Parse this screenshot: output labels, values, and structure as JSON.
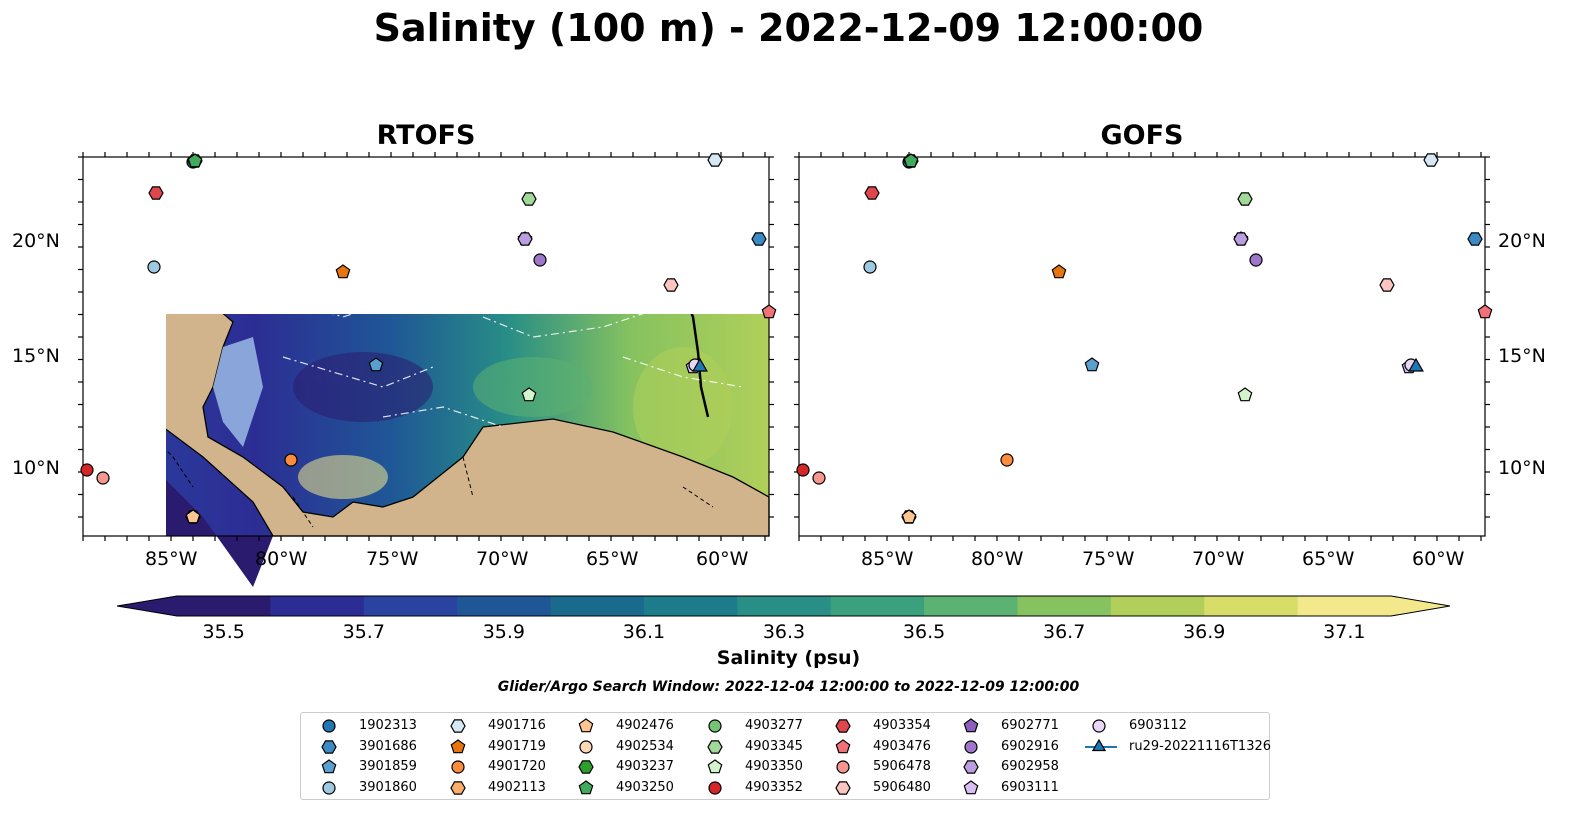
{
  "title": "Salinity (100 m) - 2022-12-09 12:00:00",
  "panels": [
    {
      "title": "RTOFS"
    },
    {
      "title": "GOFS"
    }
  ],
  "axes": {
    "lon_ticks": [
      "85°W",
      "80°W",
      "75°W",
      "70°W",
      "65°W",
      "60°W"
    ],
    "lat_ticks": [
      "20°N",
      "15°N",
      "10°N"
    ]
  },
  "colorbar": {
    "label": "Salinity (psu)",
    "ticks": [
      "35.5",
      "35.7",
      "35.9",
      "36.1",
      "36.3",
      "36.5",
      "36.7",
      "36.9",
      "37.1"
    ],
    "colors": [
      "#2b1b6f",
      "#2c2d94",
      "#2a43a0",
      "#1f5796",
      "#1a6a8e",
      "#1d7c8a",
      "#288e86",
      "#3aa07e",
      "#5cb272",
      "#86c25f",
      "#b1cf5a",
      "#d8dd6a",
      "#f4e88c"
    ],
    "range": [
      35.5,
      37.1
    ],
    "extend": "both"
  },
  "search_window": "Glider/Argo Search Window: 2022-12-04 12:00:00 to 2022-12-09 12:00:00",
  "legend": [
    {
      "label": "1902313",
      "marker": "circle",
      "color": "#1f77b4"
    },
    {
      "label": "3901686",
      "marker": "hexagon",
      "color": "#3a8ac4"
    },
    {
      "label": "3901859",
      "marker": "pentagon",
      "color": "#5aa0cf"
    },
    {
      "label": "3901860",
      "marker": "circle",
      "color": "#9ecae1"
    },
    {
      "label": "4901716",
      "marker": "hexagon",
      "color": "#d6e8f5"
    },
    {
      "label": "4901719",
      "marker": "pentagon",
      "color": "#e6750e"
    },
    {
      "label": "4901720",
      "marker": "circle",
      "color": "#fd8d3c"
    },
    {
      "label": "4902113",
      "marker": "hexagon",
      "color": "#fdae6b"
    },
    {
      "label": "4902476",
      "marker": "pentagon",
      "color": "#fdc690"
    },
    {
      "label": "4902534",
      "marker": "circle",
      "color": "#fdd9b5"
    },
    {
      "label": "4903237",
      "marker": "hexagon",
      "color": "#2ca02c"
    },
    {
      "label": "4903250",
      "marker": "pentagon",
      "color": "#41ab5d"
    },
    {
      "label": "4903277",
      "marker": "circle",
      "color": "#74c476"
    },
    {
      "label": "4903345",
      "marker": "hexagon",
      "color": "#a1d99b"
    },
    {
      "label": "4903350",
      "marker": "pentagon",
      "color": "#d4f5cc"
    },
    {
      "label": "4903352",
      "marker": "circle",
      "color": "#d62728"
    },
    {
      "label": "4903354",
      "marker": "hexagon",
      "color": "#e0474c"
    },
    {
      "label": "4903476",
      "marker": "pentagon",
      "color": "#f07178"
    },
    {
      "label": "5906478",
      "marker": "circle",
      "color": "#f7968f"
    },
    {
      "label": "5906480",
      "marker": "hexagon",
      "color": "#fcc5c0"
    },
    {
      "label": "6902771",
      "marker": "pentagon",
      "color": "#8c5fbf"
    },
    {
      "label": "6902916",
      "marker": "circle",
      "color": "#9e77cb"
    },
    {
      "label": "6902958",
      "marker": "hexagon",
      "color": "#bb9ee0"
    },
    {
      "label": "6903111",
      "marker": "pentagon",
      "color": "#d8bff0"
    },
    {
      "label": "6903112",
      "marker": "circle",
      "color": "#ead7f7"
    },
    {
      "label": "ru29-20221116T1326",
      "marker": "triangle-line",
      "color": "#1f77b4"
    }
  ],
  "colors": {
    "land": "#d2b48c",
    "shallow": "#93b3e0",
    "deep_low": "#2b1b6f"
  }
}
